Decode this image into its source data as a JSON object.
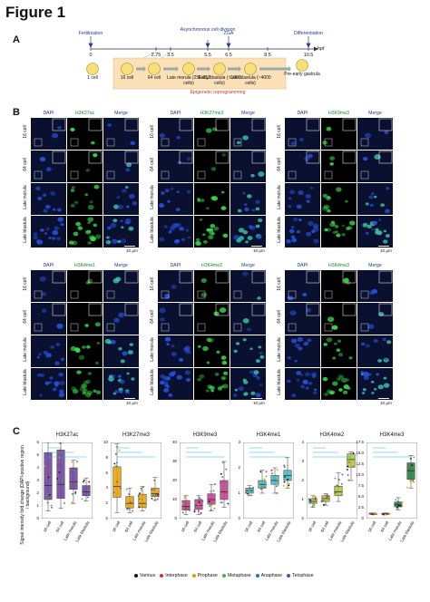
{
  "figure": {
    "title": "Figure 1"
  },
  "panelA": {
    "letter": "A",
    "unit": "hpf",
    "events": [
      {
        "label": "Fertilization",
        "x": 100
      },
      {
        "label": "Asynchronous cell division",
        "x": 229
      },
      {
        "label": "ZGA",
        "x": 252
      },
      {
        "label": "Differentiation",
        "x": 340
      }
    ],
    "ticks": [
      "0",
      "2.75",
      "3.5",
      "5.5",
      "6.5",
      "8.5",
      "10.5"
    ],
    "stages": [
      "1 cell",
      "16 cell",
      "64 cell",
      "Late morula (256-512 cells)",
      "Early blastula (~1000 cells)",
      "Late blastula (~4000 cells)",
      "Pre-early gastrula"
    ],
    "reprogramming_label": "Epigenetic reprogramming"
  },
  "panelB": {
    "letter": "B",
    "blocks": [
      {
        "marker": "H3K27ac",
        "col": 0,
        "row": 0
      },
      {
        "marker": "H3K27me3",
        "col": 1,
        "row": 0
      },
      {
        "marker": "H3K9me3",
        "col": 2,
        "row": 0
      },
      {
        "marker": "H3K4me1",
        "col": 0,
        "row": 1
      },
      {
        "marker": "H3K4me2",
        "col": 1,
        "row": 1
      },
      {
        "marker": "H3K4me3",
        "col": 2,
        "row": 1
      }
    ],
    "channel_dapi": "DAPI",
    "channel_merge": "Merge",
    "rows": [
      "16 cell",
      "64 cell",
      "Late morula",
      "Late blastula"
    ],
    "scale_bar": "10 μm"
  },
  "panelC": {
    "letter": "C",
    "ylabel": "Signal intensity fold change (DAPI-positive region / background)",
    "categories": [
      "16 cell",
      "64 cell",
      "Late morula",
      "Late blastula"
    ],
    "legend": [
      {
        "label": "Various",
        "color": "#111111"
      },
      {
        "label": "Interphase",
        "color": "#c0392b"
      },
      {
        "label": "Prophase",
        "color": "#e69f00"
      },
      {
        "label": "Metaphase",
        "color": "#4daf4a"
      },
      {
        "label": "Anaphase",
        "color": "#1f78b4"
      },
      {
        "label": "Telophase",
        "color": "#7b3fa0"
      }
    ]
  },
  "chart_data": [
    {
      "type": "box",
      "title": "H3K27ac",
      "categories": [
        "16 cell",
        "64 cell",
        "Late morula",
        "Late blastula"
      ],
      "ylim": [
        0,
        6
      ],
      "yticks": [
        "0",
        "1",
        "2",
        "3",
        "4",
        "5",
        "6"
      ],
      "box": [
        [
          1.5,
          2.6,
          5.2
        ],
        [
          1.6,
          2.7,
          5.4
        ],
        [
          2.3,
          2.9,
          4.0
        ],
        [
          1.8,
          2.1,
          2.6
        ]
      ],
      "whisker": [
        [
          0.6,
          6.0
        ],
        [
          0.8,
          6.0
        ],
        [
          1.2,
          4.6
        ],
        [
          1.4,
          3.2
        ]
      ],
      "color": "#6a3d9a"
    },
    {
      "type": "box",
      "title": "H3K27me3",
      "categories": [
        "16 cell",
        "64 cell",
        "Late morula",
        "Late blastula"
      ],
      "ylim": [
        0,
        10
      ],
      "yticks": [
        "0",
        "2",
        "4",
        "6",
        "8",
        "10"
      ],
      "box": [
        [
          2.8,
          4.2,
          6.8
        ],
        [
          1.4,
          2.0,
          2.9
        ],
        [
          1.5,
          2.0,
          3.2
        ],
        [
          2.9,
          3.3,
          4.0
        ]
      ],
      "whisker": [
        [
          0.8,
          9.8
        ],
        [
          0.8,
          4.0
        ],
        [
          1.0,
          4.2
        ],
        [
          2.4,
          5.4
        ]
      ],
      "color": "#e69f00"
    },
    {
      "type": "box",
      "title": "H3K9me3",
      "categories": [
        "16 cell",
        "64 cell",
        "Late morula",
        "Late blastula"
      ],
      "ylim": [
        0,
        40
      ],
      "yticks": [
        "0",
        "10",
        "20",
        "30",
        "40"
      ],
      "box": [
        [
          4.5,
          6.5,
          9.5
        ],
        [
          4.8,
          7.0,
          10.0
        ],
        [
          7.5,
          10.0,
          13.0
        ],
        [
          10.0,
          14.0,
          20.0
        ]
      ],
      "whisker": [
        [
          2.0,
          12.0
        ],
        [
          2.0,
          12.0
        ],
        [
          4.0,
          18.0
        ],
        [
          6.0,
          30.0
        ]
      ],
      "color": "#c03a8a"
    },
    {
      "type": "box",
      "title": "H3K4me1",
      "categories": [
        "16 cell",
        "64 cell",
        "Late morula",
        "Late blastula"
      ],
      "ylim": [
        0,
        3
      ],
      "yticks": [
        "0",
        "1",
        "2",
        "3"
      ],
      "box": [
        [
          1.0,
          1.1,
          1.2
        ],
        [
          1.2,
          1.35,
          1.5
        ],
        [
          1.35,
          1.5,
          1.7
        ],
        [
          1.5,
          1.7,
          1.9
        ]
      ],
      "whisker": [
        [
          0.9,
          1.3
        ],
        [
          1.0,
          1.9
        ],
        [
          1.0,
          2.0
        ],
        [
          1.2,
          2.4
        ]
      ],
      "color": "#41b6c4"
    },
    {
      "type": "box",
      "title": "H3K4me2",
      "categories": [
        "16 cell",
        "64 cell",
        "Late morula",
        "Late blastula"
      ],
      "ylim": [
        0,
        4
      ],
      "yticks": [
        "0",
        "1",
        "2",
        "3",
        "4"
      ],
      "box": [
        [
          0.8,
          0.9,
          1.05
        ],
        [
          0.9,
          1.05,
          1.2
        ],
        [
          1.2,
          1.4,
          1.7
        ],
        [
          2.7,
          3.1,
          3.4
        ]
      ],
      "whisker": [
        [
          0.6,
          1.2
        ],
        [
          0.7,
          1.3
        ],
        [
          0.9,
          2.4
        ],
        [
          2.0,
          3.5
        ]
      ],
      "color": "#a6c83a"
    },
    {
      "type": "box",
      "title": "H3K4me3",
      "categories": [
        "16 cell",
        "64 cell",
        "Late morula",
        "Late blastula"
      ],
      "ylim": [
        0,
        17.5
      ],
      "yticks": [
        "0",
        "2.5",
        "5.0",
        "7.5",
        "10.0",
        "12.5",
        "15.0",
        "17.5"
      ],
      "box": [
        [
          1.0,
          1.1,
          1.2
        ],
        [
          1.0,
          1.1,
          1.2
        ],
        [
          2.7,
          3.2,
          3.8
        ],
        [
          9.0,
          11.0,
          12.8
        ]
      ],
      "whisker": [
        [
          0.9,
          1.3
        ],
        [
          0.9,
          1.3
        ],
        [
          2.0,
          4.8
        ],
        [
          7.0,
          14.5
        ]
      ],
      "color": "#1b7a3a"
    }
  ]
}
